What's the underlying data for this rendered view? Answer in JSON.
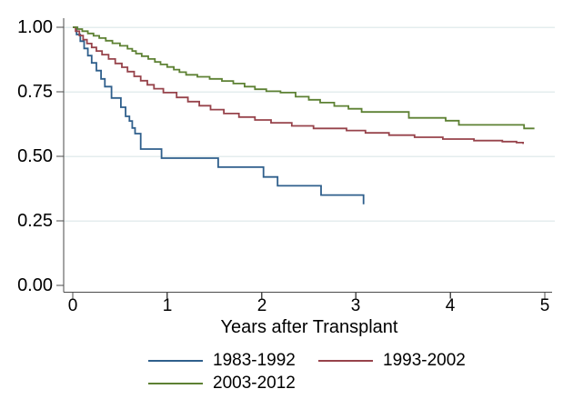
{
  "chart_data": {
    "type": "line",
    "subtype": "kaplan-meier-step-survival",
    "title": "",
    "xlabel": "Years after Transplant",
    "ylabel": "",
    "xlim": [
      0,
      5
    ],
    "ylim": [
      0,
      1
    ],
    "xticks": [
      "0",
      "1",
      "2",
      "3",
      "4",
      "5"
    ],
    "xtick_values": [
      0,
      1,
      2,
      3,
      4,
      5
    ],
    "yticks": [
      "1.00",
      "0.75",
      "0.50",
      "0.25",
      "0.00"
    ],
    "ytick_values": [
      1.0,
      0.75,
      0.5,
      0.25,
      0.0
    ],
    "grid": "horizontal",
    "grid_values": [
      1.0,
      0.75,
      0.5,
      0.25
    ],
    "legend_position": "bottom",
    "colors": {
      "background": "#ffffff",
      "grid": "#e4edee",
      "axis": "#4a4a4a",
      "text": "#000000"
    },
    "series": [
      {
        "name": "1983-1992",
        "color": "#2f5f8c",
        "points": [
          [
            0,
            1.0
          ],
          [
            0.04,
            0.972
          ],
          [
            0.08,
            0.946
          ],
          [
            0.12,
            0.918
          ],
          [
            0.16,
            0.89
          ],
          [
            0.2,
            0.862
          ],
          [
            0.25,
            0.832
          ],
          [
            0.3,
            0.8
          ],
          [
            0.34,
            0.77
          ],
          [
            0.41,
            0.726
          ],
          [
            0.51,
            0.69
          ],
          [
            0.56,
            0.655
          ],
          [
            0.6,
            0.637
          ],
          [
            0.63,
            0.61
          ],
          [
            0.66,
            0.588
          ],
          [
            0.72,
            0.528
          ],
          [
            0.94,
            0.493
          ],
          [
            1.54,
            0.458
          ],
          [
            2.02,
            0.42
          ],
          [
            2.17,
            0.386
          ],
          [
            2.63,
            0.35
          ],
          [
            3.08,
            0.314
          ]
        ]
      },
      {
        "name": "1993-2002",
        "color": "#97434b",
        "points": [
          [
            0,
            1.0
          ],
          [
            0.03,
            0.985
          ],
          [
            0.07,
            0.968
          ],
          [
            0.11,
            0.952
          ],
          [
            0.15,
            0.937
          ],
          [
            0.2,
            0.922
          ],
          [
            0.25,
            0.908
          ],
          [
            0.31,
            0.894
          ],
          [
            0.38,
            0.877
          ],
          [
            0.45,
            0.86
          ],
          [
            0.52,
            0.845
          ],
          [
            0.58,
            0.828
          ],
          [
            0.65,
            0.81
          ],
          [
            0.72,
            0.793
          ],
          [
            0.79,
            0.777
          ],
          [
            0.86,
            0.762
          ],
          [
            0.96,
            0.747
          ],
          [
            1.1,
            0.728
          ],
          [
            1.22,
            0.712
          ],
          [
            1.34,
            0.696
          ],
          [
            1.46,
            0.681
          ],
          [
            1.6,
            0.666
          ],
          [
            1.76,
            0.652
          ],
          [
            1.93,
            0.641
          ],
          [
            2.1,
            0.63
          ],
          [
            2.32,
            0.618
          ],
          [
            2.55,
            0.608
          ],
          [
            2.9,
            0.6
          ],
          [
            3.1,
            0.591
          ],
          [
            3.35,
            0.582
          ],
          [
            3.62,
            0.574
          ],
          [
            3.92,
            0.567
          ],
          [
            4.25,
            0.561
          ],
          [
            4.55,
            0.557
          ],
          [
            4.7,
            0.553
          ],
          [
            4.77,
            0.548
          ]
        ]
      },
      {
        "name": "2003-2012",
        "color": "#5d8133",
        "points": [
          [
            0,
            1.0
          ],
          [
            0.05,
            0.993
          ],
          [
            0.1,
            0.985
          ],
          [
            0.16,
            0.976
          ],
          [
            0.22,
            0.967
          ],
          [
            0.28,
            0.958
          ],
          [
            0.35,
            0.948
          ],
          [
            0.42,
            0.938
          ],
          [
            0.5,
            0.928
          ],
          [
            0.58,
            0.917
          ],
          [
            0.63,
            0.908
          ],
          [
            0.67,
            0.898
          ],
          [
            0.73,
            0.888
          ],
          [
            0.8,
            0.877
          ],
          [
            0.87,
            0.866
          ],
          [
            0.93,
            0.856
          ],
          [
            1.0,
            0.846
          ],
          [
            1.07,
            0.836
          ],
          [
            1.13,
            0.826
          ],
          [
            1.2,
            0.816
          ],
          [
            1.32,
            0.808
          ],
          [
            1.45,
            0.8
          ],
          [
            1.58,
            0.792
          ],
          [
            1.7,
            0.782
          ],
          [
            1.82,
            0.77
          ],
          [
            1.93,
            0.76
          ],
          [
            2.05,
            0.752
          ],
          [
            2.2,
            0.747
          ],
          [
            2.36,
            0.731
          ],
          [
            2.5,
            0.719
          ],
          [
            2.62,
            0.708
          ],
          [
            2.77,
            0.695
          ],
          [
            2.92,
            0.684
          ],
          [
            3.06,
            0.672
          ],
          [
            3.56,
            0.649
          ],
          [
            3.95,
            0.638
          ],
          [
            4.09,
            0.622
          ],
          [
            4.78,
            0.608
          ],
          [
            4.89,
            0.608
          ]
        ]
      }
    ]
  }
}
